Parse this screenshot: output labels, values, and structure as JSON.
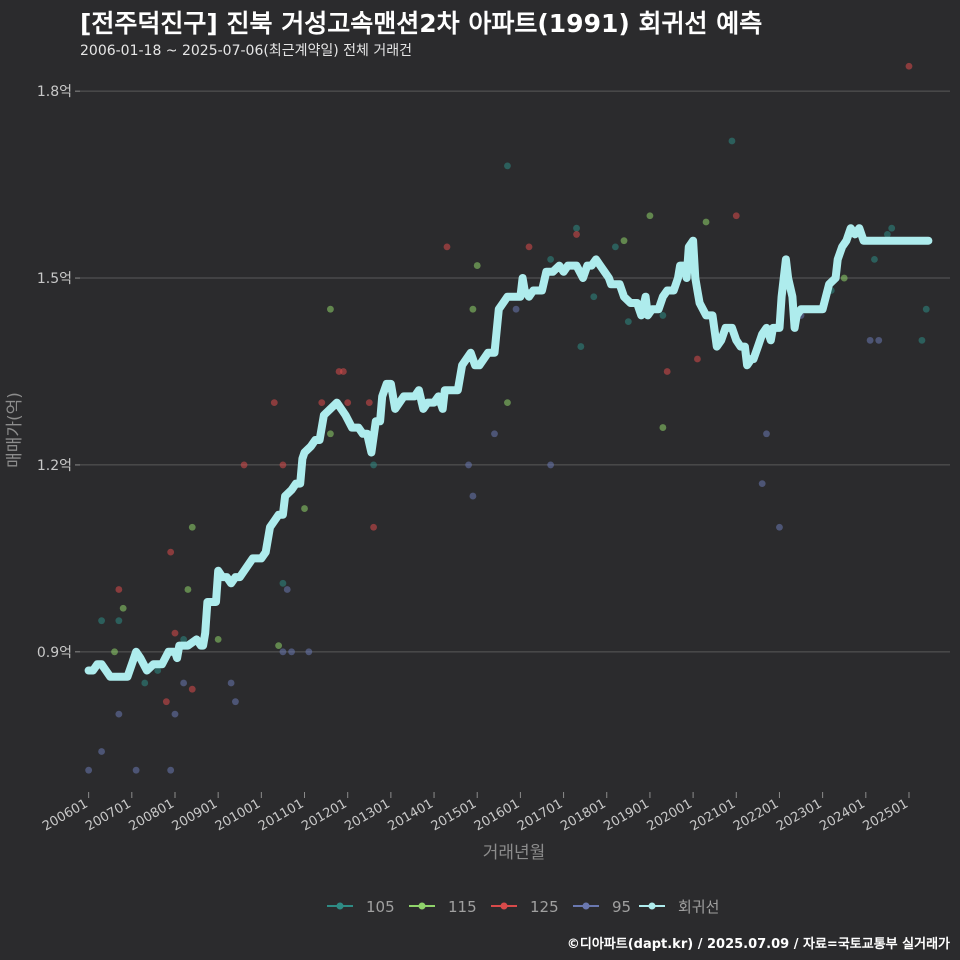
{
  "header": {
    "title": "[전주덕진구] 진북 거성고속맨션2차 아파트(1991) 회귀선 예측",
    "subtitle": "2006-01-18 ~ 2025-07-06(최근계약일) 전체 거래건"
  },
  "footer": {
    "credit": "©디아파트(dapt.kr) / 2025.07.09 / 자료=국토교통부 실거래가"
  },
  "colors": {
    "background": "#2b2b2d",
    "grid": "#5a5a5a",
    "s105": "#2e8b84",
    "s115": "#8fd36a",
    "s125": "#d84a4a",
    "s95": "#6a78b0",
    "regression": "#aeeced"
  },
  "chart_data": {
    "type": "scatter",
    "title": "[전주덕진구] 진북 거성고속맨션2차 아파트(1991) 회귀선 예측",
    "xlabel": "거래년월",
    "ylabel": "매매가(억)",
    "xlim": [
      2005.8,
      2025.95
    ],
    "ylim": [
      0.675,
      1.85
    ],
    "grid": true,
    "legend_position": "bottom",
    "y_ticks": [
      {
        "value": 0.9,
        "label": "0.9억"
      },
      {
        "value": 1.2,
        "label": "1.2억"
      },
      {
        "value": 1.5,
        "label": "1.5억"
      },
      {
        "value": 1.8,
        "label": "1.8억"
      }
    ],
    "x_ticks": [
      {
        "value": 2006.0,
        "label": "200601"
      },
      {
        "value": 2007.0,
        "label": "200701"
      },
      {
        "value": 2008.0,
        "label": "200801"
      },
      {
        "value": 2009.0,
        "label": "200901"
      },
      {
        "value": 2010.0,
        "label": "201001"
      },
      {
        "value": 2011.0,
        "label": "201101"
      },
      {
        "value": 2012.0,
        "label": "201201"
      },
      {
        "value": 2013.0,
        "label": "201301"
      },
      {
        "value": 2014.0,
        "label": "201401"
      },
      {
        "value": 2015.0,
        "label": "201501"
      },
      {
        "value": 2016.0,
        "label": "201601"
      },
      {
        "value": 2017.0,
        "label": "201701"
      },
      {
        "value": 2018.0,
        "label": "201801"
      },
      {
        "value": 2019.0,
        "label": "201901"
      },
      {
        "value": 2020.0,
        "label": "202001"
      },
      {
        "value": 2021.0,
        "label": "202101"
      },
      {
        "value": 2022.0,
        "label": "202201"
      },
      {
        "value": 2023.0,
        "label": "202301"
      },
      {
        "value": 2024.0,
        "label": "202401"
      },
      {
        "value": 2025.0,
        "label": "202501"
      }
    ],
    "series": [
      {
        "name": "105",
        "color_key": "s105",
        "points": [
          [
            2006.3,
            0.95
          ],
          [
            2006.7,
            0.95
          ],
          [
            2007.3,
            0.85
          ],
          [
            2007.6,
            0.87
          ],
          [
            2008.2,
            0.92
          ],
          [
            2010.5,
            1.01
          ],
          [
            2012.6,
            1.2
          ],
          [
            2015.7,
            1.68
          ],
          [
            2016.7,
            1.53
          ],
          [
            2017.3,
            1.58
          ],
          [
            2017.4,
            1.39
          ],
          [
            2017.7,
            1.47
          ],
          [
            2018.2,
            1.55
          ],
          [
            2018.5,
            1.43
          ],
          [
            2019.3,
            1.44
          ],
          [
            2020.9,
            1.72
          ],
          [
            2023.2,
            1.48
          ],
          [
            2024.2,
            1.53
          ],
          [
            2024.5,
            1.57
          ],
          [
            2024.6,
            1.58
          ],
          [
            2025.3,
            1.4
          ],
          [
            2025.4,
            1.45
          ]
        ]
      },
      {
        "name": "115",
        "color_key": "s115",
        "points": [
          [
            2006.6,
            0.9
          ],
          [
            2006.8,
            0.97
          ],
          [
            2008.3,
            1.0
          ],
          [
            2008.4,
            1.1
          ],
          [
            2009.0,
            0.92
          ],
          [
            2010.4,
            0.91
          ],
          [
            2011.0,
            1.13
          ],
          [
            2011.6,
            1.45
          ],
          [
            2011.6,
            1.25
          ],
          [
            2013.7,
            1.3
          ],
          [
            2014.9,
            1.45
          ],
          [
            2015.0,
            1.52
          ],
          [
            2015.7,
            1.3
          ],
          [
            2018.4,
            1.56
          ],
          [
            2019.0,
            1.6
          ],
          [
            2019.3,
            1.26
          ],
          [
            2020.3,
            1.59
          ],
          [
            2023.5,
            1.5
          ]
        ]
      },
      {
        "name": "125",
        "color_key": "s125",
        "points": [
          [
            2006.7,
            1.0
          ],
          [
            2007.8,
            0.82
          ],
          [
            2007.9,
            1.06
          ],
          [
            2008.0,
            0.93
          ],
          [
            2008.4,
            0.84
          ],
          [
            2009.6,
            1.2
          ],
          [
            2010.3,
            1.3
          ],
          [
            2010.5,
            1.2
          ],
          [
            2011.4,
            1.3
          ],
          [
            2011.8,
            1.35
          ],
          [
            2011.9,
            1.35
          ],
          [
            2012.0,
            1.3
          ],
          [
            2012.5,
            1.3
          ],
          [
            2012.6,
            1.1
          ],
          [
            2014.3,
            1.55
          ],
          [
            2016.2,
            1.55
          ],
          [
            2017.3,
            1.57
          ],
          [
            2019.4,
            1.35
          ],
          [
            2020.1,
            1.37
          ],
          [
            2021.0,
            1.6
          ],
          [
            2022.2,
            1.5
          ],
          [
            2025.0,
            1.84
          ]
        ]
      },
      {
        "name": "95",
        "color_key": "s95",
        "points": [
          [
            2006.0,
            0.71
          ],
          [
            2006.3,
            0.74
          ],
          [
            2006.7,
            0.8
          ],
          [
            2007.1,
            0.71
          ],
          [
            2007.9,
            0.71
          ],
          [
            2008.0,
            0.8
          ],
          [
            2008.2,
            0.85
          ],
          [
            2009.3,
            0.85
          ],
          [
            2009.4,
            0.82
          ],
          [
            2010.5,
            0.9
          ],
          [
            2010.7,
            0.9
          ],
          [
            2010.6,
            1.0
          ],
          [
            2011.1,
            0.9
          ],
          [
            2014.8,
            1.2
          ],
          [
            2014.9,
            1.15
          ],
          [
            2015.4,
            1.25
          ],
          [
            2015.9,
            1.45
          ],
          [
            2016.7,
            1.2
          ],
          [
            2021.6,
            1.17
          ],
          [
            2021.7,
            1.25
          ],
          [
            2022.0,
            1.1
          ],
          [
            2022.5,
            1.44
          ],
          [
            2024.1,
            1.4
          ],
          [
            2024.3,
            1.4
          ]
        ]
      }
    ],
    "regression": {
      "name": "회귀선",
      "color_key": "regression",
      "points": [
        [
          2006.0,
          0.87
        ],
        [
          2006.1,
          0.87
        ],
        [
          2006.2,
          0.88
        ],
        [
          2006.3,
          0.88
        ],
        [
          2006.4,
          0.87
        ],
        [
          2006.5,
          0.86
        ],
        [
          2006.6,
          0.86
        ],
        [
          2006.8,
          0.86
        ],
        [
          2006.9,
          0.86
        ],
        [
          2007.0,
          0.88
        ],
        [
          2007.1,
          0.9
        ],
        [
          2007.2,
          0.89
        ],
        [
          2007.35,
          0.87
        ],
        [
          2007.5,
          0.88
        ],
        [
          2007.6,
          0.88
        ],
        [
          2007.7,
          0.88
        ],
        [
          2007.85,
          0.9
        ],
        [
          2008.0,
          0.9
        ],
        [
          2008.05,
          0.89
        ],
        [
          2008.1,
          0.91
        ],
        [
          2008.3,
          0.91
        ],
        [
          2008.5,
          0.92
        ],
        [
          2008.6,
          0.91
        ],
        [
          2008.65,
          0.91
        ],
        [
          2008.7,
          0.93
        ],
        [
          2008.75,
          0.98
        ],
        [
          2008.85,
          0.98
        ],
        [
          2008.95,
          0.98
        ],
        [
          2009.0,
          1.03
        ],
        [
          2009.1,
          1.02
        ],
        [
          2009.2,
          1.02
        ],
        [
          2009.3,
          1.01
        ],
        [
          2009.4,
          1.02
        ],
        [
          2009.5,
          1.02
        ],
        [
          2009.7,
          1.04
        ],
        [
          2009.8,
          1.05
        ],
        [
          2010.0,
          1.05
        ],
        [
          2010.1,
          1.06
        ],
        [
          2010.2,
          1.1
        ],
        [
          2010.3,
          1.11
        ],
        [
          2010.4,
          1.12
        ],
        [
          2010.5,
          1.12
        ],
        [
          2010.55,
          1.15
        ],
        [
          2010.7,
          1.16
        ],
        [
          2010.8,
          1.17
        ],
        [
          2010.9,
          1.17
        ],
        [
          2010.95,
          1.21
        ],
        [
          2011.0,
          1.22
        ],
        [
          2011.15,
          1.23
        ],
        [
          2011.25,
          1.24
        ],
        [
          2011.35,
          1.24
        ],
        [
          2011.45,
          1.28
        ],
        [
          2011.6,
          1.29
        ],
        [
          2011.75,
          1.3
        ],
        [
          2011.85,
          1.29
        ],
        [
          2011.95,
          1.28
        ],
        [
          2012.1,
          1.26
        ],
        [
          2012.25,
          1.26
        ],
        [
          2012.35,
          1.25
        ],
        [
          2012.45,
          1.25
        ],
        [
          2012.55,
          1.22
        ],
        [
          2012.65,
          1.27
        ],
        [
          2012.75,
          1.27
        ],
        [
          2012.8,
          1.31
        ],
        [
          2012.9,
          1.33
        ],
        [
          2013.0,
          1.33
        ],
        [
          2013.1,
          1.29
        ],
        [
          2013.2,
          1.3
        ],
        [
          2013.3,
          1.31
        ],
        [
          2013.4,
          1.31
        ],
        [
          2013.55,
          1.31
        ],
        [
          2013.65,
          1.32
        ],
        [
          2013.75,
          1.29
        ],
        [
          2013.85,
          1.3
        ],
        [
          2014.0,
          1.3
        ],
        [
          2014.1,
          1.31
        ],
        [
          2014.2,
          1.29
        ],
        [
          2014.25,
          1.32
        ],
        [
          2014.4,
          1.32
        ],
        [
          2014.55,
          1.32
        ],
        [
          2014.65,
          1.36
        ],
        [
          2014.75,
          1.37
        ],
        [
          2014.85,
          1.38
        ],
        [
          2014.95,
          1.36
        ],
        [
          2015.05,
          1.36
        ],
        [
          2015.25,
          1.38
        ],
        [
          2015.4,
          1.38
        ],
        [
          2015.5,
          1.45
        ],
        [
          2015.6,
          1.46
        ],
        [
          2015.7,
          1.47
        ],
        [
          2015.8,
          1.47
        ],
        [
          2016.0,
          1.47
        ],
        [
          2016.05,
          1.5
        ],
        [
          2016.1,
          1.48
        ],
        [
          2016.2,
          1.47
        ],
        [
          2016.3,
          1.48
        ],
        [
          2016.5,
          1.48
        ],
        [
          2016.6,
          1.51
        ],
        [
          2016.75,
          1.51
        ],
        [
          2016.9,
          1.52
        ],
        [
          2017.0,
          1.51
        ],
        [
          2017.1,
          1.52
        ],
        [
          2017.3,
          1.52
        ],
        [
          2017.45,
          1.5
        ],
        [
          2017.55,
          1.52
        ],
        [
          2017.65,
          1.52
        ],
        [
          2017.75,
          1.53
        ],
        [
          2017.85,
          1.52
        ],
        [
          2017.95,
          1.51
        ],
        [
          2018.05,
          1.5
        ],
        [
          2018.1,
          1.49
        ],
        [
          2018.3,
          1.49
        ],
        [
          2018.4,
          1.47
        ],
        [
          2018.55,
          1.46
        ],
        [
          2018.7,
          1.46
        ],
        [
          2018.8,
          1.44
        ],
        [
          2018.9,
          1.47
        ],
        [
          2018.95,
          1.44
        ],
        [
          2019.05,
          1.45
        ],
        [
          2019.2,
          1.45
        ],
        [
          2019.3,
          1.47
        ],
        [
          2019.4,
          1.48
        ],
        [
          2019.55,
          1.48
        ],
        [
          2019.65,
          1.5
        ],
        [
          2019.7,
          1.52
        ],
        [
          2019.8,
          1.52
        ],
        [
          2019.85,
          1.5
        ],
        [
          2019.9,
          1.55
        ],
        [
          2020.0,
          1.56
        ],
        [
          2020.05,
          1.5
        ],
        [
          2020.1,
          1.48
        ],
        [
          2020.15,
          1.46
        ],
        [
          2020.3,
          1.44
        ],
        [
          2020.45,
          1.44
        ],
        [
          2020.55,
          1.39
        ],
        [
          2020.65,
          1.4
        ],
        [
          2020.75,
          1.42
        ],
        [
          2020.9,
          1.42
        ],
        [
          2021.0,
          1.4
        ],
        [
          2021.1,
          1.39
        ],
        [
          2021.2,
          1.39
        ],
        [
          2021.25,
          1.36
        ],
        [
          2021.35,
          1.37
        ],
        [
          2021.4,
          1.37
        ],
        [
          2021.5,
          1.39
        ],
        [
          2021.6,
          1.41
        ],
        [
          2021.7,
          1.42
        ],
        [
          2021.8,
          1.4
        ],
        [
          2021.85,
          1.42
        ],
        [
          2022.0,
          1.42
        ],
        [
          2022.05,
          1.47
        ],
        [
          2022.15,
          1.53
        ],
        [
          2022.2,
          1.5
        ],
        [
          2022.3,
          1.47
        ],
        [
          2022.35,
          1.42
        ],
        [
          2022.4,
          1.44
        ],
        [
          2022.5,
          1.45
        ],
        [
          2022.6,
          1.45
        ],
        [
          2022.8,
          1.45
        ],
        [
          2023.0,
          1.45
        ],
        [
          2023.15,
          1.49
        ],
        [
          2023.3,
          1.5
        ],
        [
          2023.35,
          1.53
        ],
        [
          2023.45,
          1.55
        ],
        [
          2023.55,
          1.56
        ],
        [
          2023.65,
          1.58
        ],
        [
          2023.75,
          1.57
        ],
        [
          2023.85,
          1.58
        ],
        [
          2023.95,
          1.56
        ],
        [
          2024.05,
          1.56
        ],
        [
          2024.3,
          1.56
        ],
        [
          2024.6,
          1.56
        ],
        [
          2024.9,
          1.56
        ],
        [
          2025.25,
          1.56
        ],
        [
          2025.45,
          1.56
        ]
      ]
    },
    "legend": [
      {
        "label": "105",
        "color_key": "s105"
      },
      {
        "label": "115",
        "color_key": "s115"
      },
      {
        "label": "125",
        "color_key": "s125"
      },
      {
        "label": "95",
        "color_key": "s95"
      },
      {
        "label": "회귀선",
        "color_key": "regression"
      }
    ]
  }
}
